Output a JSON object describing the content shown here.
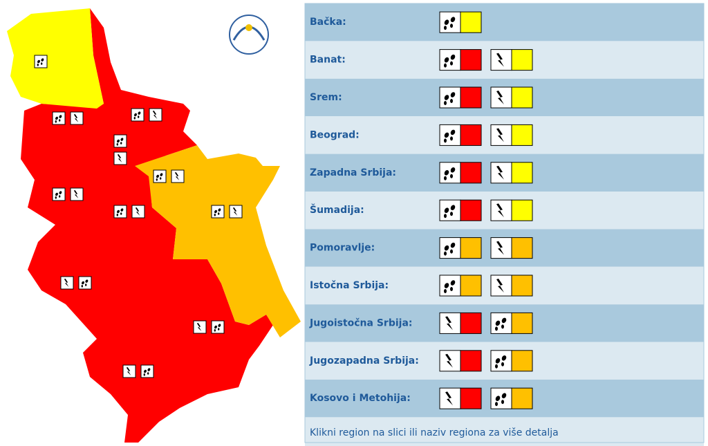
{
  "table": {
    "rows": [
      {
        "name": "Bačka:",
        "warnings": [
          {
            "icon": "rain",
            "color": "#ffff00"
          }
        ]
      },
      {
        "name": "Banat:",
        "warnings": [
          {
            "icon": "rain",
            "color": "#ff0000"
          },
          {
            "icon": "storm",
            "color": "#ffff00"
          }
        ]
      },
      {
        "name": "Srem:",
        "warnings": [
          {
            "icon": "rain",
            "color": "#ff0000"
          },
          {
            "icon": "storm",
            "color": "#ffff00"
          }
        ]
      },
      {
        "name": "Beograd:",
        "warnings": [
          {
            "icon": "rain",
            "color": "#ff0000"
          },
          {
            "icon": "storm",
            "color": "#ffff00"
          }
        ]
      },
      {
        "name": "Zapadna Srbija:",
        "warnings": [
          {
            "icon": "rain",
            "color": "#ff0000"
          },
          {
            "icon": "storm",
            "color": "#ffff00"
          }
        ]
      },
      {
        "name": "Šumadija:",
        "warnings": [
          {
            "icon": "rain",
            "color": "#ff0000"
          },
          {
            "icon": "storm",
            "color": "#ffff00"
          }
        ]
      },
      {
        "name": "Pomoravlje:",
        "warnings": [
          {
            "icon": "rain",
            "color": "#ffc000"
          },
          {
            "icon": "storm",
            "color": "#ffc000"
          }
        ]
      },
      {
        "name": "Istočna Srbija:",
        "warnings": [
          {
            "icon": "rain",
            "color": "#ffc000"
          },
          {
            "icon": "storm",
            "color": "#ffc000"
          }
        ]
      },
      {
        "name": "Jugoistočna Srbija:",
        "warnings": [
          {
            "icon": "storm",
            "color": "#ff0000"
          },
          {
            "icon": "rain",
            "color": "#ffc000"
          }
        ]
      },
      {
        "name": "Jugozapadna Srbija:",
        "warnings": [
          {
            "icon": "storm",
            "color": "#ff0000"
          },
          {
            "icon": "rain",
            "color": "#ffc000"
          }
        ]
      },
      {
        "name": "Kosovo i Metohija:",
        "warnings": [
          {
            "icon": "storm",
            "color": "#ff0000"
          },
          {
            "icon": "rain",
            "color": "#ffc000"
          }
        ]
      }
    ],
    "footer": "Klikni region na slici ili naziv regiona za više detalja"
  }
}
